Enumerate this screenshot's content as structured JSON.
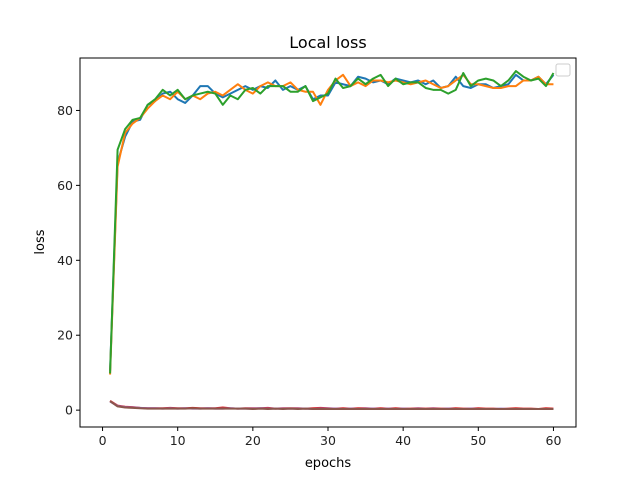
{
  "chart_data": {
    "type": "line",
    "title": "Local loss",
    "xlabel": "epochs",
    "ylabel": "loss",
    "xlim": [
      -3,
      63
    ],
    "ylim": [
      -4.5,
      94
    ],
    "xticks": [
      0,
      10,
      20,
      30,
      40,
      50,
      60
    ],
    "yticks": [
      0,
      20,
      40,
      60,
      80
    ],
    "grid": false,
    "legend": {
      "position": "top-right",
      "entries": []
    },
    "x": [
      1,
      2,
      3,
      4,
      5,
      6,
      7,
      8,
      9,
      10,
      11,
      12,
      13,
      14,
      15,
      16,
      17,
      18,
      19,
      20,
      21,
      22,
      23,
      24,
      25,
      26,
      27,
      28,
      29,
      30,
      31,
      32,
      33,
      34,
      35,
      36,
      37,
      38,
      39,
      40,
      41,
      42,
      43,
      44,
      45,
      46,
      47,
      48,
      49,
      50,
      51,
      52,
      53,
      54,
      55,
      56,
      57,
      58,
      59,
      60
    ],
    "series": [
      {
        "color": "#1f77b4",
        "values": [
          10.5,
          66,
          73,
          77,
          77.5,
          81.5,
          82.5,
          84.5,
          85,
          83,
          82,
          84,
          86.5,
          86.5,
          84.5,
          83.5,
          84.5,
          85.5,
          86.5,
          85.5,
          86.5,
          86,
          88,
          85.5,
          86.5,
          85.5,
          86.5,
          83,
          84,
          84,
          87.5,
          87,
          86.5,
          89,
          88.5,
          87.5,
          88,
          87,
          88.5,
          88,
          87.5,
          88,
          87,
          88,
          86,
          86.5,
          89,
          86.5,
          86,
          87,
          87,
          86,
          86.5,
          87,
          89.5,
          88,
          88,
          89,
          87,
          89.5
        ]
      },
      {
        "color": "#ff7f0e",
        "values": [
          9.5,
          65,
          74,
          76.5,
          78,
          80.5,
          82.5,
          84,
          83,
          85,
          83,
          84,
          83,
          84.5,
          85,
          84,
          85.5,
          87,
          85.5,
          84.5,
          86.5,
          87.5,
          86.5,
          86.5,
          87.5,
          85.5,
          85,
          85,
          81.5,
          85.5,
          88,
          89.5,
          86.5,
          87.5,
          86.5,
          88,
          88,
          87.5,
          88,
          87.5,
          87,
          87.5,
          88,
          87,
          86,
          86.5,
          88,
          89.5,
          87,
          87,
          86.5,
          86,
          86,
          86.5,
          86.5,
          88,
          88,
          89,
          87,
          87
        ]
      },
      {
        "color": "#2ca02c",
        "values": [
          9.8,
          69.5,
          75,
          77.5,
          78,
          81.5,
          83,
          85.5,
          84,
          85.5,
          83,
          84,
          84.5,
          85,
          84.5,
          81.5,
          84,
          83,
          85.5,
          86,
          84.5,
          86.5,
          86.5,
          86.5,
          85,
          85,
          86.5,
          82.5,
          83.5,
          84.5,
          88.5,
          86,
          86.5,
          88.5,
          87,
          88.5,
          89.5,
          86.5,
          88.5,
          87,
          87.5,
          87.5,
          86,
          85.5,
          85.5,
          84.5,
          85.5,
          90,
          86.5,
          88,
          88.5,
          88,
          86.5,
          88,
          90.5,
          89,
          88,
          88.5,
          86.5,
          90
        ]
      },
      {
        "color": "#d62728",
        "values": [
          2.5,
          1.2,
          0.9,
          0.8,
          0.6,
          0.5,
          0.5,
          0.5,
          0.6,
          0.5,
          0.5,
          0.6,
          0.5,
          0.5,
          0.5,
          0.7,
          0.5,
          0.4,
          0.5,
          0.5,
          0.5,
          0.6,
          0.4,
          0.5,
          0.5,
          0.5,
          0.4,
          0.5,
          0.6,
          0.5,
          0.4,
          0.5,
          0.4,
          0.5,
          0.5,
          0.4,
          0.5,
          0.4,
          0.5,
          0.4,
          0.4,
          0.5,
          0.4,
          0.5,
          0.4,
          0.4,
          0.5,
          0.4,
          0.4,
          0.5,
          0.4,
          0.4,
          0.3,
          0.4,
          0.5,
          0.4,
          0.4,
          0.3,
          0.5,
          0.4
        ]
      },
      {
        "color": "#9467bd",
        "values": [
          2.3,
          1.1,
          0.8,
          0.7,
          0.6,
          0.5,
          0.5,
          0.4,
          0.5,
          0.4,
          0.5,
          0.4,
          0.4,
          0.5,
          0.4,
          0.4,
          0.5,
          0.4,
          0.4,
          0.4,
          0.5,
          0.4,
          0.4,
          0.4,
          0.4,
          0.4,
          0.4,
          0.3,
          0.4,
          0.4,
          0.4,
          0.3,
          0.4,
          0.3,
          0.4,
          0.4,
          0.3,
          0.4,
          0.3,
          0.4,
          0.3,
          0.4,
          0.3,
          0.4,
          0.3,
          0.4,
          0.3,
          0.3,
          0.4,
          0.3,
          0.3,
          0.3,
          0.4,
          0.3,
          0.3,
          0.3,
          0.3,
          0.3,
          0.3,
          0.3
        ]
      },
      {
        "color": "#8c564b",
        "values": [
          2.4,
          1.0,
          0.7,
          0.6,
          0.5,
          0.4,
          0.4,
          0.4,
          0.4,
          0.4,
          0.4,
          0.5,
          0.4,
          0.4,
          0.4,
          0.4,
          0.4,
          0.4,
          0.4,
          0.3,
          0.4,
          0.3,
          0.4,
          0.3,
          0.4,
          0.3,
          0.4,
          0.3,
          0.3,
          0.3,
          0.3,
          0.3,
          0.3,
          0.3,
          0.3,
          0.3,
          0.3,
          0.3,
          0.3,
          0.3,
          0.3,
          0.3,
          0.3,
          0.3,
          0.3,
          0.3,
          0.3,
          0.3,
          0.3,
          0.3,
          0.3,
          0.3,
          0.3,
          0.3,
          0.3,
          0.3,
          0.3,
          0.3,
          0.3,
          0.3
        ]
      }
    ]
  }
}
